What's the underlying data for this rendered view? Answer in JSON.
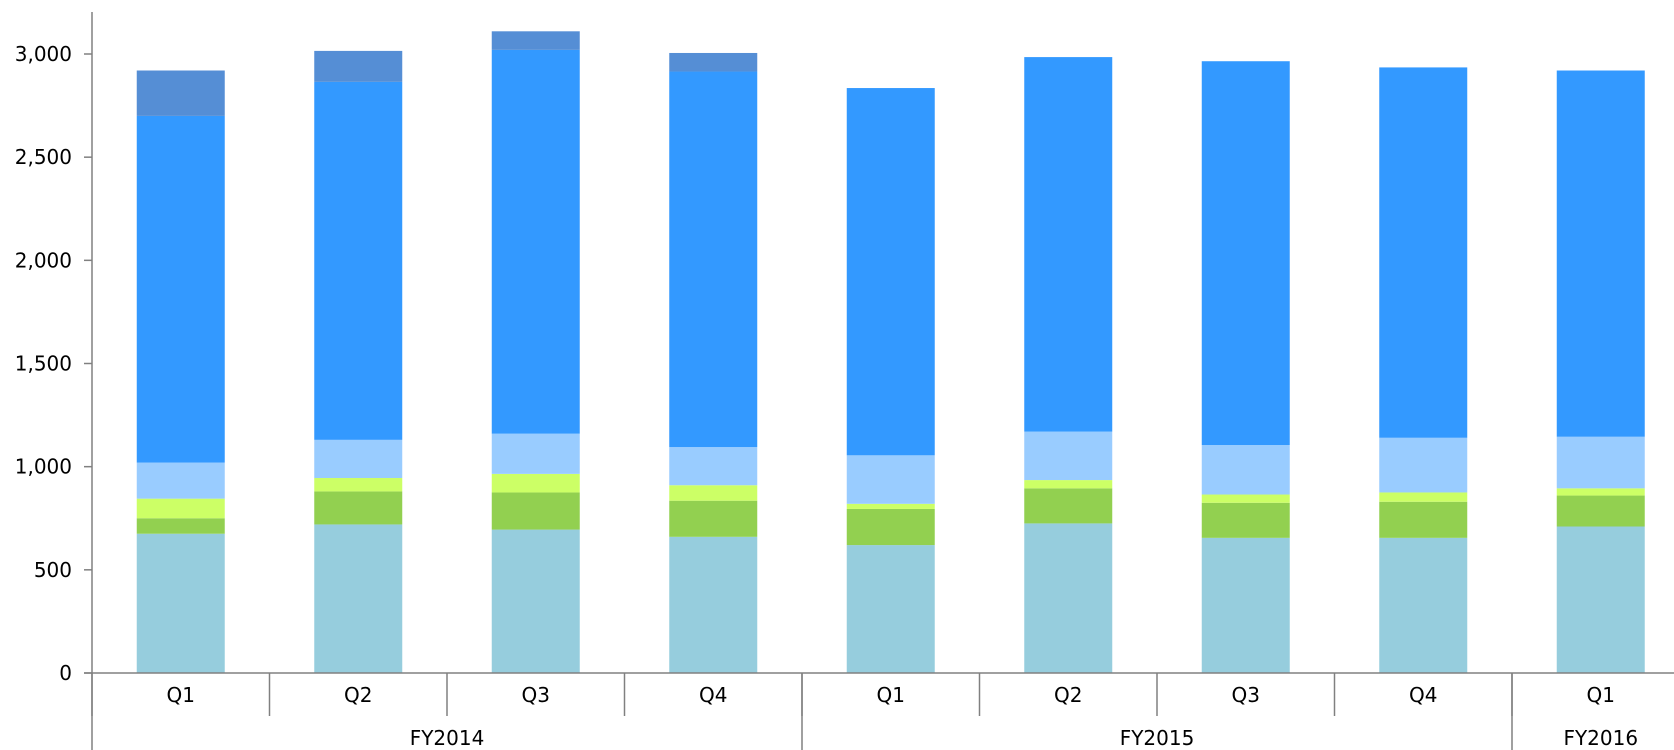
{
  "chart_data": {
    "type": "bar",
    "stacked": true,
    "title": "",
    "xlabel": "",
    "ylabel": "",
    "ylim": [
      0,
      3000
    ],
    "yticks": [
      0,
      500,
      1000,
      1500,
      2000,
      2500,
      3000
    ],
    "ytick_labels": [
      "0",
      "500",
      "1,000",
      "1,500",
      "2,000",
      "2,500",
      "3,000"
    ],
    "grid": false,
    "legend": "none",
    "categories": [
      "Q1",
      "Q2",
      "Q3",
      "Q4",
      "Q1",
      "Q2",
      "Q3",
      "Q4",
      "Q1"
    ],
    "groups": [
      {
        "label": "FY2014",
        "start": 0,
        "end": 3
      },
      {
        "label": "FY2015",
        "start": 4,
        "end": 7
      },
      {
        "label": "FY2016",
        "start": 8,
        "end": 8
      }
    ],
    "series": [
      {
        "color": "#96cddd",
        "values": [
          675,
          720,
          695,
          660,
          620,
          725,
          655,
          655,
          710
        ]
      },
      {
        "color": "#92d050",
        "values": [
          75,
          160,
          180,
          175,
          175,
          170,
          170,
          175,
          150
        ]
      },
      {
        "color": "#ccff66",
        "values": [
          95,
          65,
          90,
          75,
          25,
          40,
          40,
          45,
          35
        ]
      },
      {
        "color": "#99ccff",
        "values": [
          175,
          185,
          195,
          185,
          235,
          235,
          240,
          265,
          250
        ]
      },
      {
        "color": "#3399ff",
        "values": [
          1680,
          1735,
          1860,
          1820,
          1780,
          1815,
          1860,
          1795,
          1775
        ]
      },
      {
        "color": "#558ed5",
        "values": [
          220,
          150,
          90,
          90,
          0,
          0,
          0,
          0,
          0
        ]
      }
    ]
  }
}
